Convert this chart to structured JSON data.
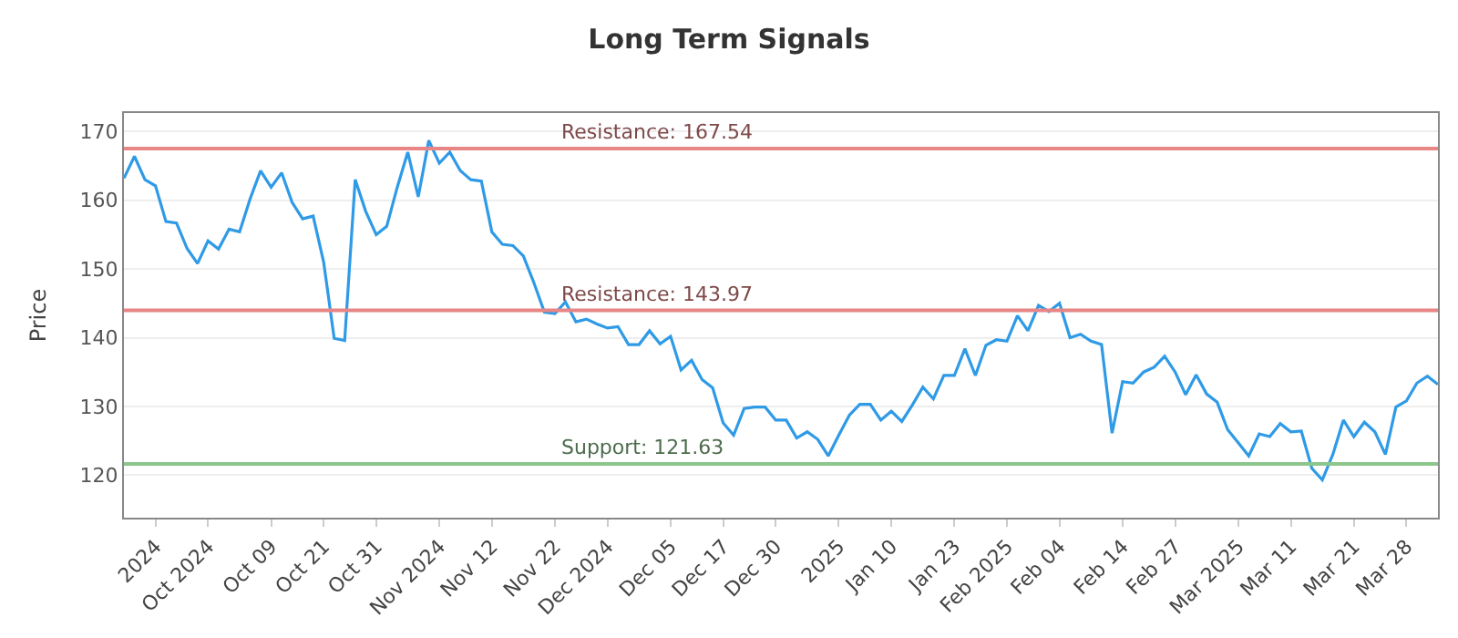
{
  "chart_data": {
    "type": "line",
    "title": "Long Term Signals",
    "ylabel": "Price",
    "categories": [
      null,
      null,
      null,
      "2024",
      null,
      null,
      null,
      null,
      "Oct 2024",
      null,
      null,
      null,
      null,
      null,
      "Oct 09",
      null,
      null,
      null,
      null,
      "Oct 21",
      null,
      null,
      null,
      null,
      "Oct 31",
      null,
      null,
      null,
      null,
      null,
      "Nov 2024",
      null,
      null,
      null,
      null,
      "Nov 12",
      null,
      null,
      null,
      null,
      null,
      "Nov 22",
      null,
      null,
      null,
      null,
      "Dec 2024",
      null,
      null,
      null,
      null,
      null,
      "Dec 05",
      null,
      null,
      null,
      null,
      "Dec 17",
      null,
      null,
      null,
      null,
      "Dec 30",
      null,
      null,
      null,
      null,
      null,
      "2025",
      null,
      null,
      null,
      null,
      "Jan 10",
      null,
      null,
      null,
      null,
      null,
      "Jan 23",
      null,
      null,
      null,
      null,
      "Feb 2025",
      null,
      null,
      null,
      null,
      "Feb 04",
      null,
      null,
      null,
      null,
      null,
      "Feb 14",
      null,
      null,
      null,
      null,
      "Feb 27",
      null,
      null,
      null,
      null,
      null,
      "Mar 2025",
      null,
      null,
      null,
      null,
      "Mar 11",
      null,
      null,
      null,
      null,
      null,
      "Mar 21",
      null,
      null,
      null,
      null,
      "Mar 28",
      null,
      null,
      null
    ],
    "series": [
      {
        "color": "#2f9ae6",
        "values": [
          163.2,
          166.4,
          163,
          162.1,
          156.9,
          156.7,
          153,
          150.8,
          154.1,
          152.9,
          155.8,
          155.4,
          160.2,
          164.3,
          161.9,
          164,
          159.7,
          157.3,
          157.7,
          151,
          139.9,
          139.6,
          163,
          158.4,
          155,
          156.2,
          161.9,
          167,
          160.5,
          168.7,
          165.4,
          167,
          164.3,
          163,
          162.8,
          155.4,
          153.6,
          153.4,
          151.9,
          148,
          143.7,
          143.5,
          145.2,
          142.3,
          142.7,
          142,
          141.4,
          141.6,
          139,
          139,
          141,
          139.1,
          140.2,
          135.3,
          136.7,
          133.9,
          132.7,
          127.6,
          125.8,
          129.7,
          129.9,
          129.9,
          128,
          128,
          125.4,
          126.3,
          125.2,
          122.8,
          125.8,
          128.7,
          130.3,
          130.3,
          128,
          129.3,
          127.8,
          130.2,
          132.8,
          131.1,
          134.5,
          134.5,
          138.4,
          134.5,
          138.9,
          139.7,
          139.5,
          143.2,
          141,
          144.7,
          143.8,
          145,
          140,
          140.5,
          139.5,
          139,
          126.1,
          133.6,
          133.4,
          135,
          135.7,
          137.3,
          135,
          131.7,
          134.6,
          131.8,
          130.6,
          126.6,
          124.7,
          122.8,
          126,
          125.6,
          127.5,
          126.3,
          126.4,
          121,
          119.3,
          123,
          128,
          125.6,
          127.7,
          126.3,
          123,
          129.9,
          130.8,
          133.4,
          134.4,
          133.2
        ]
      }
    ],
    "ylim": [
      113.8,
      172.7
    ],
    "yticks": [
      120,
      130,
      140,
      150,
      160,
      170
    ],
    "grid": "y",
    "marker": "none",
    "line_style": "solid",
    "ref_lines": [
      {
        "axis": "y",
        "value": 167.54,
        "label": "Resistance: 167.54",
        "color": "#e88585"
      },
      {
        "axis": "y",
        "value": 143.97,
        "label": "Resistance: 143.97",
        "color": "#e88585"
      },
      {
        "axis": "y",
        "value": 121.63,
        "label": "Support: 121.63",
        "color": "#8cc68c"
      }
    ]
  }
}
